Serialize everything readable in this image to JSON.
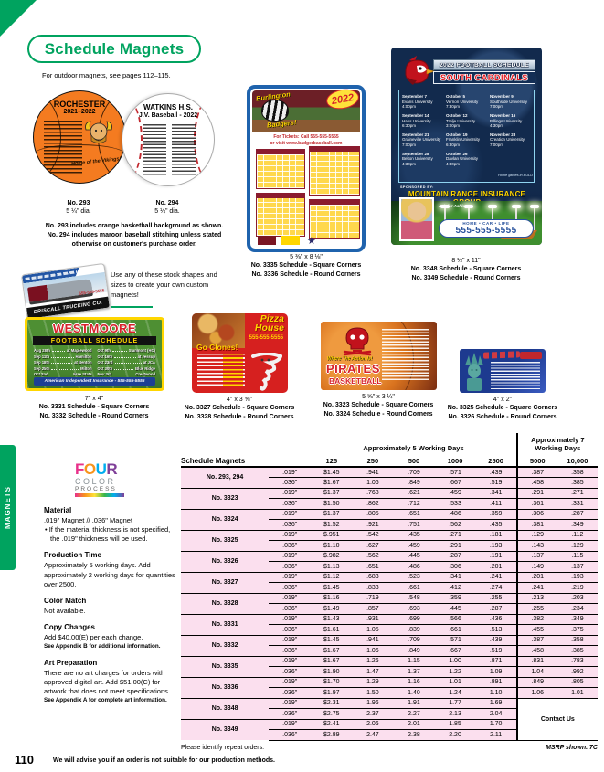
{
  "brand": {
    "green": "#00a35f",
    "pink": "#fbdfee",
    "red": "#d6222a",
    "navy": "#122a4d",
    "yellow": "#ffd600"
  },
  "page": {
    "title": "Schedule Magnets",
    "subtitle": "For outdoor magnets, see pages 112–115.",
    "side_tab": "MAGNETS",
    "page_number": "110",
    "footer_note": "We will advise you if an order is not suitable for our production methods."
  },
  "round_magnets": {
    "basketball": {
      "school": "ROCHESTER",
      "season": "2021–2022",
      "tagline": "Home of the Vikings!",
      "number": "No. 293",
      "size": "5 ¼\" dia."
    },
    "baseball": {
      "school": "WATKINS H.S.",
      "line2": "J.V. Baseball - 2022",
      "number": "No. 294",
      "size": "5 ¼\" dia."
    },
    "note_line1": "No. 293 includes orange basketball background as shown.",
    "note_line2": "No. 294 includes maroon baseball stitching unless stated",
    "note_line3": "otherwise on customer's purchase order."
  },
  "badger_magnet": {
    "script1": "Burlington",
    "script2": "Badgers!",
    "year": "2022",
    "tickets1": "For Tickets: Call 555-555-5555",
    "tickets2": "or visit www.badgerbaseball.com",
    "caption_size": "5 ⅜\" x 8 ⅛\"",
    "caption_square": "No. 3335 Schedule - Square Corners",
    "caption_round": "No. 3336 Schedule - Round Corners"
  },
  "cardinal_magnet": {
    "title": "2022 FOOTBALL SCHEDULE",
    "team": "SOUTH CARDINALS",
    "game_columns": [
      [
        {
          "d": "September 7",
          "o": "Evans University",
          "t": "4:00pm"
        },
        {
          "d": "September 14",
          "o": "Hans University",
          "t": "6:30pm"
        },
        {
          "d": "September 21",
          "o": "Graineville University",
          "t": "7:00pm"
        },
        {
          "d": "September 28",
          "o": "Belton University",
          "t": "4:30pm"
        }
      ],
      [
        {
          "d": "October 5",
          "o": "Vernon University",
          "t": "7:30pm"
        },
        {
          "d": "October 12",
          "o": "Trelje University",
          "t": "3:00pm"
        },
        {
          "d": "October 19",
          "o": "Franklin University",
          "t": "6:30pm"
        },
        {
          "d": "October 26",
          "o": "Davlan University",
          "t": "4:30pm"
        }
      ],
      [
        {
          "d": "November 9",
          "o": "Southside University",
          "t": "7:00pm"
        },
        {
          "d": "November 16",
          "o": "Billings University",
          "t": "4:30pm"
        },
        {
          "d": "November 23",
          "o": "Creation University",
          "t": "7:00pm"
        }
      ]
    ],
    "home_note": "Home games in BOLD",
    "sponsored_by": "SPONSORED BY:",
    "sponsor": "MOUNTAIN RANGE INSURANCE GROUP",
    "ask": "Ask for Ashley!",
    "services": "HOME • CAR • LIFE",
    "phone": "555-555-5555",
    "caption_size": "8 ½\" x 11\"",
    "caption_square": "No. 3348 Schedule - Square Corners",
    "caption_round": "No. 3349 Schedule - Round Corners"
  },
  "stock_blurb": "Use any of these stock shapes and sizes to create your own custom magnets!",
  "truck_magnet": {
    "company": "DRISCALL TRUCKING CO.",
    "phone": "555-555-5555"
  },
  "westmoore": {
    "team": "WESTMOORE",
    "subtitle": "FOOTBALL SCHEDULE",
    "games_left": [
      {
        "d": "Aug 28th",
        "o": "at Maplewood"
      },
      {
        "d": "Sep 11th",
        "o": "Hamilton"
      },
      {
        "d": "Sep 18th",
        "o": "at Benton"
      },
      {
        "d": "Sep 25th",
        "o": "Milton"
      },
      {
        "d": "Oct 2nd",
        "o": "Free State"
      }
    ],
    "games_right": [
      {
        "d": "Oct 9th",
        "o": "Stanmont (HC)"
      },
      {
        "d": "Oct 16th",
        "o": "at Jessup"
      },
      {
        "d": "Oct 23rd",
        "o": "at JCA"
      },
      {
        "d": "Oct 30th",
        "o": "Blue Ridge"
      },
      {
        "d": "Nov 3rd",
        "o": "Crestwood"
      }
    ],
    "sponsor": "American Independent Insurance - 555-555-5555",
    "caption_size": "7\" x 4\"",
    "caption_square": "No. 3331 Schedule - Square Corners",
    "caption_round": "No. 3332 Schedule - Round Corners"
  },
  "pizza_magnet": {
    "name1": "Pizza",
    "name2": "House",
    "phone": "555-555-5555",
    "headline": "Go Clones!",
    "caption_size": "4\" x 3 ⅝\"",
    "caption_square": "No. 3327 Schedule - Square Corners",
    "caption_round": "No. 3328 Schedule - Round Corners"
  },
  "pirates_magnet": {
    "tagline": "Where The Action Is!",
    "team1": "PIRATES",
    "team2": "BASKETBALL",
    "caption_size": "5 ⅝\" x 3 ¼\"",
    "caption_square": "No. 3323 Schedule - Square Corners",
    "caption_round": "No. 3324 Schedule - Round Corners"
  },
  "liberty_magnet": {
    "caption_size": "4\" x 2\"",
    "caption_square": "No. 3325 Schedule - Square Corners",
    "caption_round": "No. 3326 Schedule - Round Corners"
  },
  "sidebar": {
    "logo": {
      "four": [
        "F",
        "O",
        "U",
        "R"
      ],
      "color": "COLOR",
      "process": "PROCESS"
    },
    "material_heading": "Material",
    "material_line": ".019\" Magnet   //   .036\" Magnet",
    "material_bullet": "• If the material thickness is not specified, the .019\" thickness will be used.",
    "production_heading": "Production Time",
    "production_text": "Approximately 5 working days. Add approximately 2 working days for quantities over 2500.",
    "colormatch_heading": "Color Match",
    "colormatch_text": "Not available.",
    "copy_heading": "Copy Changes",
    "copy_text": "Add $40.00(E) per each change.",
    "copy_note": "See Appendix B for additional information.",
    "art_heading": "Art Preparation",
    "art_text": "There are no art charges for orders with approved digital art. Add $51.00(C) for artwork that does not meet specifications.",
    "art_note": "See Appendix A for complete art information."
  },
  "table": {
    "title": "Schedule Magnets",
    "group5": "Approximately 5 Working Days",
    "group7a": "Approximately 7",
    "group7b": "Working Days",
    "columns": [
      "125",
      "250",
      "500",
      "1000",
      "2500",
      "5000",
      "10,000"
    ],
    "thickness": [
      ".019\"",
      ".036\""
    ],
    "rows": [
      {
        "item": "No. 293, 294",
        "t019": [
          "$1.45",
          ".941",
          ".709",
          ".571",
          ".439",
          ".387",
          ".358"
        ],
        "t036": [
          "$1.67",
          "1.06",
          ".849",
          ".667",
          ".519",
          ".458",
          ".385"
        ]
      },
      {
        "item": "No. 3323",
        "t019": [
          "$1.37",
          ".768",
          ".621",
          ".459",
          ".341",
          ".291",
          ".271"
        ],
        "t036": [
          "$1.50",
          ".862",
          ".712",
          ".533",
          ".411",
          ".361",
          ".331"
        ]
      },
      {
        "item": "No. 3324",
        "t019": [
          "$1.37",
          ".805",
          ".651",
          ".486",
          ".359",
          ".306",
          ".287"
        ],
        "t036": [
          "$1.52",
          ".921",
          ".751",
          ".562",
          ".435",
          ".381",
          ".349"
        ]
      },
      {
        "item": "No. 3325",
        "t019": [
          "$.951",
          ".542",
          ".435",
          ".271",
          ".181",
          ".129",
          ".112"
        ],
        "t036": [
          "$1.10",
          ".627",
          ".459",
          ".291",
          ".193",
          ".143",
          ".129"
        ]
      },
      {
        "item": "No. 3326",
        "t019": [
          "$.982",
          ".562",
          ".445",
          ".287",
          ".191",
          ".137",
          ".115"
        ],
        "t036": [
          "$1.13",
          ".651",
          ".486",
          ".306",
          ".201",
          ".149",
          ".137"
        ]
      },
      {
        "item": "No. 3327",
        "t019": [
          "$1.12",
          ".683",
          ".523",
          ".341",
          ".241",
          ".201",
          ".193"
        ],
        "t036": [
          "$1.45",
          ".833",
          ".661",
          ".412",
          ".274",
          ".241",
          ".219"
        ]
      },
      {
        "item": "No. 3328",
        "t019": [
          "$1.16",
          ".719",
          ".548",
          ".359",
          ".255",
          ".213",
          ".203"
        ],
        "t036": [
          "$1.49",
          ".857",
          ".693",
          ".445",
          ".287",
          ".255",
          ".234"
        ]
      },
      {
        "item": "No. 3331",
        "t019": [
          "$1.43",
          ".931",
          ".699",
          ".566",
          ".436",
          ".382",
          ".349"
        ],
        "t036": [
          "$1.61",
          "1.05",
          ".839",
          ".661",
          ".513",
          ".455",
          ".375"
        ]
      },
      {
        "item": "No. 3332",
        "t019": [
          "$1.45",
          ".941",
          ".709",
          ".571",
          ".439",
          ".387",
          ".358"
        ],
        "t036": [
          "$1.67",
          "1.06",
          ".849",
          ".667",
          ".519",
          ".458",
          ".385"
        ]
      },
      {
        "item": "No. 3335",
        "t019": [
          "$1.67",
          "1.26",
          "1.15",
          "1.00",
          ".871",
          ".831",
          ".783"
        ],
        "t036": [
          "$1.90",
          "1.47",
          "1.37",
          "1.22",
          "1.09",
          "1.04",
          ".992"
        ]
      },
      {
        "item": "No. 3336",
        "t019": [
          "$1.70",
          "1.29",
          "1.16",
          "1.01",
          ".891",
          ".849",
          ".805"
        ],
        "t036": [
          "$1.97",
          "1.50",
          "1.40",
          "1.24",
          "1.10",
          "1.06",
          "1.01"
        ]
      },
      {
        "item": "No. 3348",
        "contact": true,
        "t019": [
          "$2.31",
          "1.96",
          "1.91",
          "1.77",
          "1.69"
        ],
        "t036": [
          "$2.75",
          "2.37",
          "2.27",
          "2.13",
          "2.04"
        ]
      },
      {
        "item": "No. 3349",
        "contact": true,
        "t019": [
          "$2.41",
          "2.06",
          "2.01",
          "1.85",
          "1.70"
        ],
        "t036": [
          "$2.89",
          "2.47",
          "2.38",
          "2.20",
          "2.11"
        ]
      }
    ],
    "contact_label": "Contact Us",
    "footnote_left": "Please identify repeat orders.",
    "footnote_right": "MSRP shown. 7C"
  }
}
